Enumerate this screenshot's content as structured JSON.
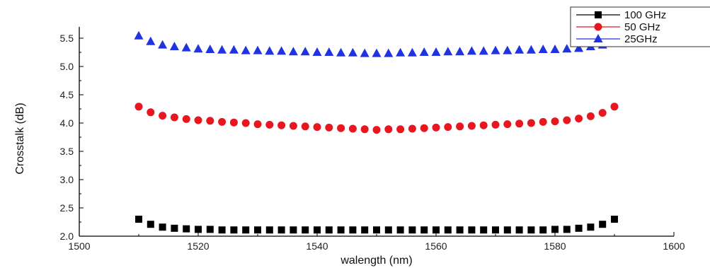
{
  "chart_data": {
    "type": "scatter",
    "title": "",
    "xlabel": "walength (nm)",
    "ylabel": "Crosstalk (dB)",
    "xlim": [
      1500,
      1600
    ],
    "ylim": [
      2.0,
      5.7
    ],
    "xticks": [
      1500,
      1520,
      1540,
      1560,
      1580,
      1600
    ],
    "xtick_labels": [
      "1500",
      "1520",
      "1540",
      "1560",
      "1580",
      "1600"
    ],
    "yticks": [
      2.0,
      2.5,
      3.0,
      3.5,
      4.0,
      4.5,
      5.0,
      5.5
    ],
    "ytick_labels": [
      "2.0",
      "2.5",
      "3.0",
      "3.5",
      "4.0",
      "4.5",
      "5.0",
      "5.5"
    ],
    "grid": false,
    "legend_position": "top-right",
    "x": [
      1510,
      1512,
      1514,
      1516,
      1518,
      1520,
      1522,
      1524,
      1526,
      1528,
      1530,
      1532,
      1534,
      1536,
      1538,
      1540,
      1542,
      1544,
      1546,
      1548,
      1550,
      1552,
      1554,
      1556,
      1558,
      1560,
      1562,
      1564,
      1566,
      1568,
      1570,
      1572,
      1574,
      1576,
      1578,
      1580,
      1582,
      1584,
      1586,
      1588,
      1590
    ],
    "series": [
      {
        "name": "100 GHz",
        "color": "#000000",
        "marker": "square",
        "values": [
          2.3,
          2.21,
          2.16,
          2.14,
          2.13,
          2.12,
          2.12,
          2.11,
          2.11,
          2.11,
          2.11,
          2.11,
          2.11,
          2.11,
          2.11,
          2.11,
          2.11,
          2.11,
          2.11,
          2.11,
          2.11,
          2.11,
          2.11,
          2.11,
          2.11,
          2.11,
          2.11,
          2.11,
          2.11,
          2.11,
          2.11,
          2.11,
          2.11,
          2.11,
          2.11,
          2.12,
          2.12,
          2.14,
          2.16,
          2.21,
          2.3
        ]
      },
      {
        "name": "50 GHz",
        "color": "#e8161e",
        "marker": "circle",
        "values": [
          4.29,
          4.19,
          4.13,
          4.1,
          4.07,
          4.05,
          4.04,
          4.02,
          4.01,
          4.0,
          3.98,
          3.97,
          3.96,
          3.95,
          3.94,
          3.93,
          3.92,
          3.91,
          3.9,
          3.89,
          3.88,
          3.89,
          3.89,
          3.9,
          3.91,
          3.92,
          3.93,
          3.94,
          3.95,
          3.96,
          3.97,
          3.98,
          3.99,
          4.0,
          4.02,
          4.03,
          4.05,
          4.08,
          4.12,
          4.18,
          4.29
        ]
      },
      {
        "name": "25GHz",
        "color": "#1f33e0",
        "marker": "triangle",
        "values": [
          5.54,
          5.44,
          5.38,
          5.35,
          5.33,
          5.31,
          5.3,
          5.29,
          5.29,
          5.28,
          5.28,
          5.27,
          5.27,
          5.26,
          5.26,
          5.25,
          5.25,
          5.24,
          5.24,
          5.23,
          5.23,
          5.23,
          5.24,
          5.24,
          5.25,
          5.25,
          5.26,
          5.26,
          5.27,
          5.27,
          5.28,
          5.28,
          5.29,
          5.29,
          5.3,
          5.3,
          5.31,
          5.32,
          5.35,
          5.38,
          5.44
        ]
      }
    ]
  }
}
